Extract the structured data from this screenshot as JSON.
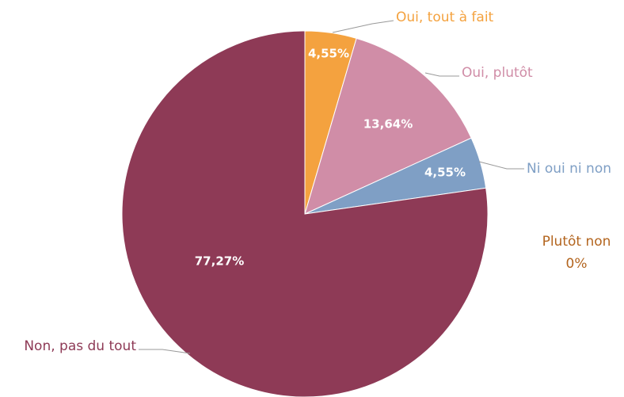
{
  "chart_data": {
    "type": "pie",
    "categories": [
      "Oui, tout à fait",
      "Oui, plutôt",
      "Ni oui ni non",
      "Plutôt non",
      "Non, pas du tout"
    ],
    "values": [
      4.55,
      13.64,
      4.55,
      0,
      77.27
    ],
    "value_labels": [
      "4,55%",
      "13,64%",
      "4,55%",
      "0%",
      "77,27%"
    ],
    "colors": [
      "#f4a23f",
      "#d08da7",
      "#7f9fc5",
      "#b3651f",
      "#8e3a56"
    ]
  }
}
